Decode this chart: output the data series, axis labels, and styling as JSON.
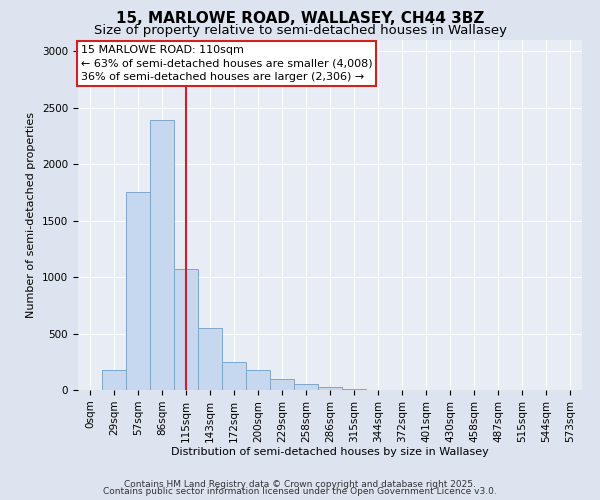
{
  "title_line1": "15, MARLOWE ROAD, WALLASEY, CH44 3BZ",
  "title_line2": "Size of property relative to semi-detached houses in Wallasey",
  "xlabel": "Distribution of semi-detached houses by size in Wallasey",
  "ylabel": "Number of semi-detached properties",
  "bar_labels": [
    "0sqm",
    "29sqm",
    "57sqm",
    "86sqm",
    "115sqm",
    "143sqm",
    "172sqm",
    "200sqm",
    "229sqm",
    "258sqm",
    "286sqm",
    "315sqm",
    "344sqm",
    "372sqm",
    "401sqm",
    "430sqm",
    "458sqm",
    "487sqm",
    "515sqm",
    "544sqm",
    "573sqm"
  ],
  "bar_values": [
    0,
    175,
    1750,
    2390,
    1075,
    550,
    250,
    175,
    100,
    55,
    25,
    10,
    0,
    0,
    0,
    0,
    0,
    0,
    0,
    0,
    0
  ],
  "bar_color": "#c5d8ef",
  "bar_edge_color": "#7aa8cc",
  "red_line_x": 4.0,
  "annotation_title": "15 MARLOWE ROAD: 110sqm",
  "annotation_line2": "← 63% of semi-detached houses are smaller (4,008)",
  "annotation_line3": "36% of semi-detached houses are larger (2,306) →",
  "red_line_color": "#cc2222",
  "annotation_box_color": "#ffffff",
  "annotation_box_edge": "#cc2222",
  "ylim": [
    0,
    3100
  ],
  "yticks": [
    0,
    500,
    1000,
    1500,
    2000,
    2500,
    3000
  ],
  "background_color": "#dde4ef",
  "plot_background": "#e8edf5",
  "grid_color": "#ffffff",
  "footer_line1": "Contains HM Land Registry data © Crown copyright and database right 2025.",
  "footer_line2": "Contains public sector information licensed under the Open Government Licence v3.0.",
  "title_fontsize": 11,
  "subtitle_fontsize": 9.5,
  "axis_label_fontsize": 8,
  "tick_fontsize": 7.5,
  "footer_fontsize": 6.5,
  "annotation_fontsize": 8
}
